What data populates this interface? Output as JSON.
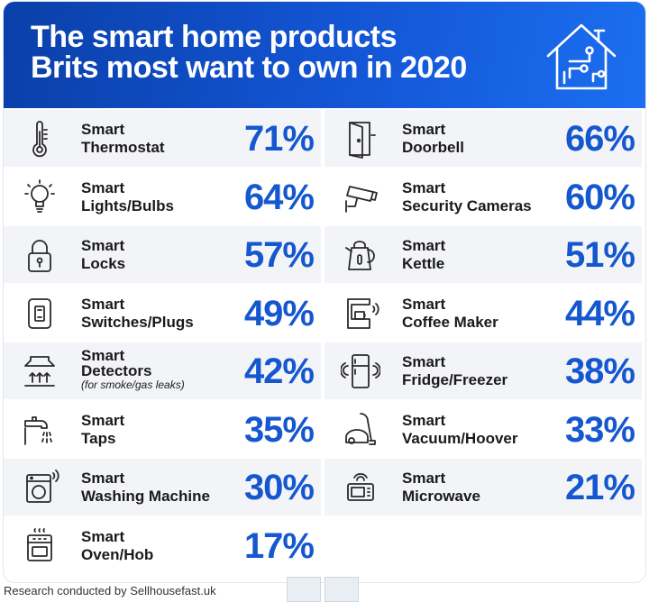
{
  "title": {
    "line1": "The smart home products",
    "line2": "Brits most want to own in 2020"
  },
  "footer": "Research conducted by Sellhousefast.uk",
  "colors": {
    "header": "#1356d6",
    "accent": "#1557cf"
  },
  "chart_data": {
    "type": "table",
    "title": "The smart home products Brits most want to own in 2020",
    "unit": "%",
    "left": [
      {
        "line1": "Smart",
        "line2": "Thermostat",
        "value": "71%",
        "icon": "thermometer-icon"
      },
      {
        "line1": "Smart",
        "line2": "Lights/Bulbs",
        "value": "64%",
        "icon": "light-bulb-icon"
      },
      {
        "line1": "Smart",
        "line2": "Locks",
        "value": "57%",
        "icon": "padlock-icon"
      },
      {
        "line1": "Smart",
        "line2": "Switches/Plugs",
        "value": "49%",
        "icon": "switch-icon"
      },
      {
        "line1": "Smart",
        "line2": "Detectors",
        "note": "(for smoke/gas leaks)",
        "value": "42%",
        "icon": "smoke-detector-icon"
      },
      {
        "line1": "Smart",
        "line2": "Taps",
        "value": "35%",
        "icon": "tap-icon"
      },
      {
        "line1": "Smart",
        "line2": "Washing Machine",
        "value": "30%",
        "icon": "washing-machine-icon"
      },
      {
        "line1": "Smart",
        "line2": "Oven/Hob",
        "value": "17%",
        "icon": "oven-icon"
      }
    ],
    "right": [
      {
        "line1": "Smart",
        "line2": "Doorbell",
        "value": "66%",
        "icon": "door-icon"
      },
      {
        "line1": "Smart",
        "line2": "Security Cameras",
        "value": "60%",
        "icon": "security-camera-icon"
      },
      {
        "line1": "Smart",
        "line2": "Kettle",
        "value": "51%",
        "icon": "kettle-icon"
      },
      {
        "line1": "Smart",
        "line2": "Coffee Maker",
        "value": "44%",
        "icon": "coffee-maker-icon"
      },
      {
        "line1": "Smart",
        "line2": "Fridge/Freezer",
        "value": "38%",
        "icon": "fridge-icon"
      },
      {
        "line1": "Smart",
        "line2": "Vacuum/Hoover",
        "value": "33%",
        "icon": "vacuum-icon"
      },
      {
        "line1": "Smart",
        "line2": "Microwave",
        "value": "21%",
        "icon": "microwave-icon"
      }
    ]
  }
}
